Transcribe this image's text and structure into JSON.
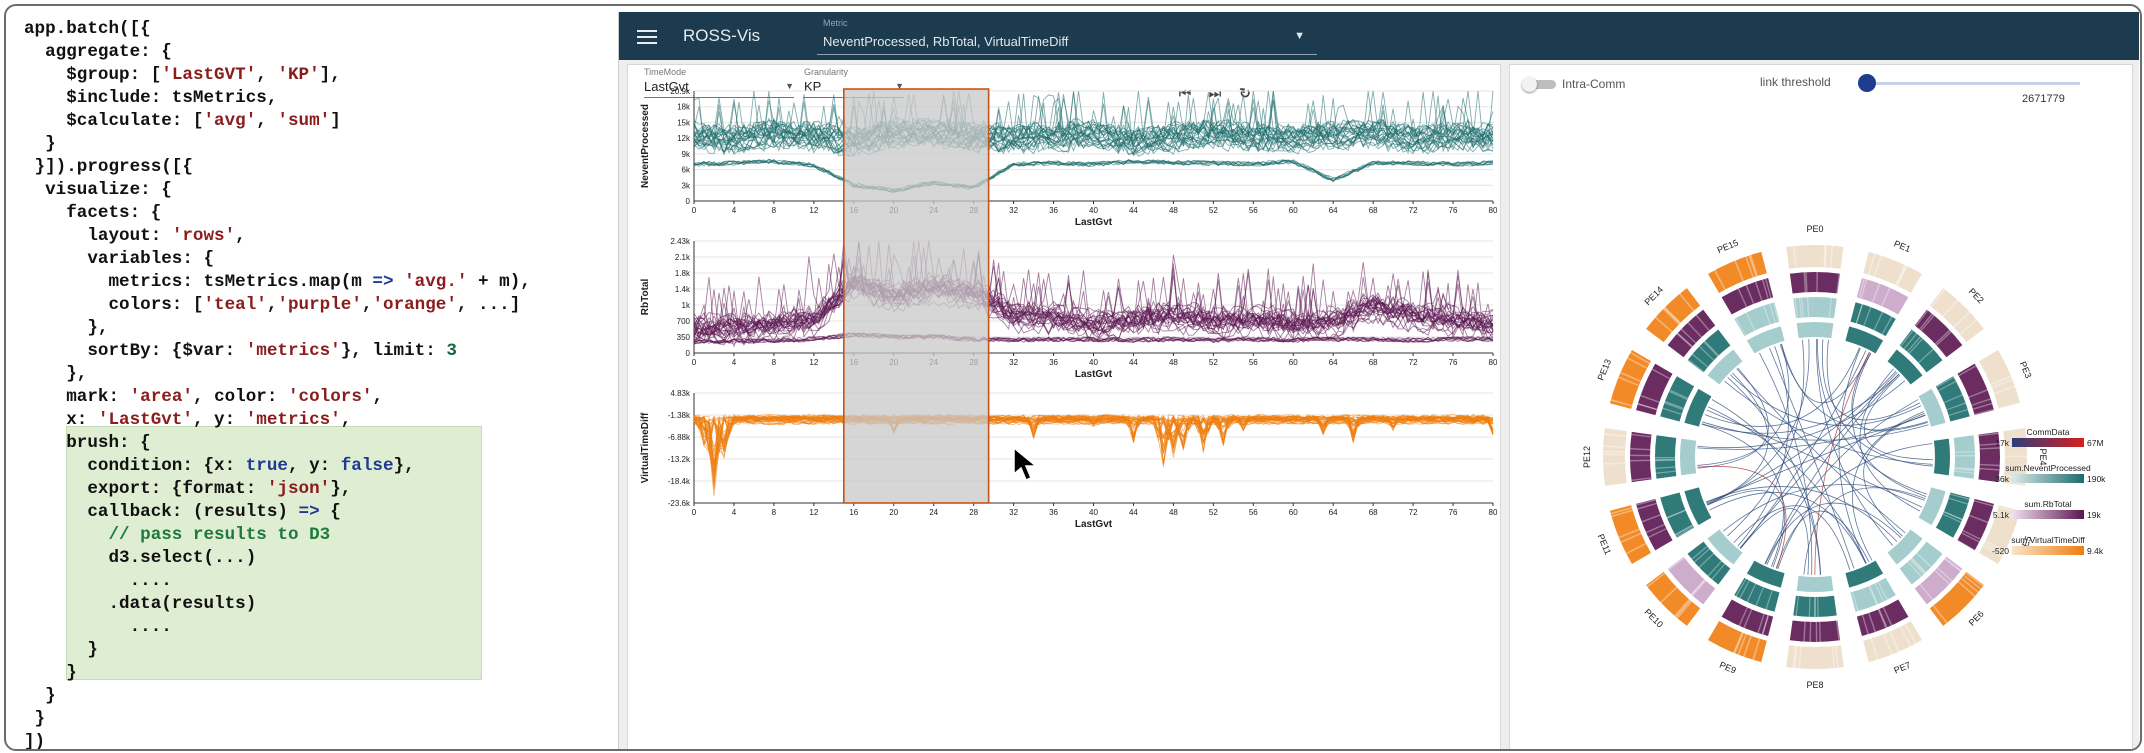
{
  "code": {
    "lines": [
      [
        [
          "app.batch([{",
          ""
        ]
      ],
      [
        [
          "  aggregate: {",
          ""
        ]
      ],
      [
        [
          "    $group: [",
          ""
        ],
        [
          "'LastGVT'",
          "str"
        ],
        [
          ", ",
          ""
        ],
        [
          "'KP'",
          "str"
        ],
        [
          "],",
          ""
        ]
      ],
      [
        [
          "    $include: tsMetrics,",
          ""
        ]
      ],
      [
        [
          "    $calculate: [",
          ""
        ],
        [
          "'avg'",
          "str"
        ],
        [
          ", ",
          ""
        ],
        [
          "'sum'",
          "str"
        ],
        [
          "]",
          ""
        ]
      ],
      [
        [
          "  }",
          ""
        ]
      ],
      [
        [
          " }]).progress([{",
          ""
        ]
      ],
      [
        [
          "  visualize: {",
          ""
        ]
      ],
      [
        [
          "    facets: {",
          ""
        ]
      ],
      [
        [
          "      layout: ",
          ""
        ],
        [
          "'rows'",
          "str"
        ],
        [
          ",",
          ""
        ]
      ],
      [
        [
          "      variables: {",
          ""
        ]
      ],
      [
        [
          "        metrics: tsMetrics.map(m ",
          ""
        ],
        [
          "=>",
          "kw"
        ],
        [
          " ",
          ""
        ],
        [
          "'avg.'",
          "str"
        ],
        [
          " + m),",
          ""
        ]
      ],
      [
        [
          "        colors: [",
          ""
        ],
        [
          "'teal'",
          "str"
        ],
        [
          ",",
          ""
        ],
        [
          "'purple'",
          "str"
        ],
        [
          ",",
          ""
        ],
        [
          "'orange'",
          "str"
        ],
        [
          ", ...]",
          ""
        ]
      ],
      [
        [
          "      },",
          ""
        ]
      ],
      [
        [
          "      sortBy: {$var: ",
          ""
        ],
        [
          "'metrics'",
          "str"
        ],
        [
          "}, limit: ",
          ""
        ],
        [
          "3",
          "num"
        ]
      ],
      [
        [
          "    },",
          ""
        ]
      ],
      [
        [
          "    mark: ",
          ""
        ],
        [
          "'area'",
          "str"
        ],
        [
          ", color: ",
          ""
        ],
        [
          "'colors'",
          "str"
        ],
        [
          ",",
          ""
        ]
      ],
      [
        [
          "    x: ",
          ""
        ],
        [
          "'LastGvt'",
          "str"
        ],
        [
          ", y: ",
          ""
        ],
        [
          "'metrics'",
          "str"
        ],
        [
          ",",
          ""
        ]
      ],
      [
        [
          "    brush: {",
          ""
        ]
      ],
      [
        [
          "      condition: {x: ",
          ""
        ],
        [
          "true",
          "kw"
        ],
        [
          ", y: ",
          ""
        ],
        [
          "false",
          "kw"
        ],
        [
          "},",
          ""
        ]
      ],
      [
        [
          "      export: {format: ",
          ""
        ],
        [
          "'json'",
          "str"
        ],
        [
          "},",
          ""
        ]
      ],
      [
        [
          "      callback: (results) ",
          ""
        ],
        [
          "=>",
          "kw"
        ],
        [
          " {",
          ""
        ]
      ],
      [
        [
          "        // pass results to D3",
          "cm"
        ]
      ],
      [
        [
          "        d3.select(...)",
          ""
        ]
      ],
      [
        [
          "          ....",
          ""
        ]
      ],
      [
        [
          "        .data(results)",
          ""
        ]
      ],
      [
        [
          "          ....",
          ""
        ]
      ],
      [
        [
          "      }",
          ""
        ]
      ],
      [
        [
          "    }",
          ""
        ]
      ],
      [
        [
          "  }",
          ""
        ]
      ],
      [
        [
          " }",
          ""
        ]
      ],
      [
        [
          "])",
          ""
        ]
      ]
    ]
  },
  "app": {
    "title": "ROSS-Vis",
    "metric_select_label": "Metric",
    "metric_select_value": "NeventProcessed, RbTotal, VirtualTimeDiff",
    "timemode_label": "TimeMode",
    "timemode_value": "LastGvt",
    "granularity_label": "Granularity",
    "granularity_value": "KP",
    "btn_first": "⏮",
    "btn_next": "⏭",
    "btn_refresh": "↻",
    "intra_comm_label": "Intra-Comm",
    "link_threshold_label": "link threshold",
    "link_threshold_value": "2671779"
  },
  "colors": {
    "teal": "#1b6b6b",
    "purple": "#5b1650",
    "orange": "#ef7d0f",
    "brush": "#c8c8c8",
    "brush_border": "#c8531a",
    "link": "#2b4a7a"
  },
  "chart_data": [
    {
      "type": "line",
      "ylabel": "NeventProcessed",
      "xlabel": "LastGvt",
      "xlim": [
        0,
        80
      ],
      "ylim": [
        0,
        20900
      ],
      "y_ticks": [
        "0",
        "3k",
        "6k",
        "9k",
        "12k",
        "15k",
        "18k",
        "20.9k"
      ],
      "x_ticks": [
        "0",
        "4",
        "8",
        "12",
        "16",
        "20",
        "24",
        "28",
        "32",
        "36",
        "40",
        "44",
        "48",
        "52",
        "56",
        "60",
        "64",
        "68",
        "72",
        "76",
        "80"
      ],
      "color": "teal",
      "brush_x": [
        15,
        29.5
      ],
      "band_center": [
        12000,
        11500,
        12500,
        12000,
        11000,
        12500,
        12800,
        12000,
        11500,
        12000,
        12500,
        11000,
        11800,
        12500,
        12000,
        11500,
        12200,
        12800,
        11500,
        12000,
        12000
      ],
      "band_low": [
        7000,
        7200,
        7500,
        6800,
        3000,
        2000,
        3500,
        2500,
        7000,
        7200,
        7000,
        7500,
        7300,
        7200,
        7000,
        7500,
        4000,
        7300,
        7200,
        7000,
        7200
      ]
    },
    {
      "type": "line",
      "ylabel": "RbTotal",
      "xlabel": "LastGvt",
      "xlim": [
        0,
        80
      ],
      "ylim": [
        0,
        2430
      ],
      "y_ticks": [
        "0",
        "350",
        "700",
        "1k",
        "1.4k",
        "1.8k",
        "2.1k",
        "2.43k"
      ],
      "x_ticks": [
        "0",
        "4",
        "8",
        "12",
        "16",
        "20",
        "24",
        "28",
        "32",
        "36",
        "40",
        "44",
        "48",
        "52",
        "56",
        "60",
        "64",
        "68",
        "72",
        "76",
        "80"
      ],
      "color": "purple",
      "brush_x": [
        15,
        29.5
      ],
      "band_center": [
        500,
        520,
        600,
        700,
        1500,
        1200,
        1400,
        1300,
        800,
        750,
        600,
        700,
        800,
        650,
        700,
        600,
        650,
        1000,
        800,
        700,
        600
      ],
      "band_low": [
        250,
        260,
        280,
        300,
        400,
        350,
        350,
        300,
        280,
        300,
        300,
        280,
        300,
        280,
        300,
        280,
        300,
        300,
        280,
        300,
        300
      ]
    },
    {
      "type": "line",
      "ylabel": "VirtualTimeDiff",
      "xlabel": "LastGvt",
      "xlim": [
        0,
        80
      ],
      "ylim": [
        -23600,
        4830
      ],
      "y_ticks": [
        "-23.6k",
        "-18.4k",
        "-13.2k",
        "-6.88k",
        "-1.38k",
        "4.83k"
      ],
      "x_ticks": [
        "0",
        "4",
        "8",
        "12",
        "16",
        "20",
        "24",
        "28",
        "32",
        "36",
        "40",
        "44",
        "48",
        "52",
        "56",
        "60",
        "64",
        "68",
        "72",
        "76",
        "80"
      ],
      "color": "orange",
      "brush_x": [
        15,
        29.5
      ],
      "dips": [
        [
          1,
          -9000
        ],
        [
          2,
          -22000
        ],
        [
          3,
          -13000
        ],
        [
          20,
          -6000
        ],
        [
          28,
          -3000
        ],
        [
          34,
          -7000
        ],
        [
          40,
          -4000
        ],
        [
          44,
          -8000
        ],
        [
          47,
          -15000
        ],
        [
          48,
          -12000
        ],
        [
          49,
          -10000
        ],
        [
          51,
          -11000
        ],
        [
          53,
          -9000
        ],
        [
          55,
          -5000
        ],
        [
          63,
          -6000
        ],
        [
          66,
          -8000
        ],
        [
          70,
          -5000
        ],
        [
          78,
          -3000
        ],
        [
          80,
          -6000
        ]
      ]
    }
  ],
  "chord": {
    "pe_labels": [
      "PE0",
      "PE1",
      "PE2",
      "PE3",
      "PE4",
      "PE5",
      "PE6",
      "PE7",
      "PE8",
      "PE9",
      "PE10",
      "PE11",
      "PE12",
      "PE13",
      "PE14",
      "PE15"
    ],
    "legend": [
      {
        "title": "CommData",
        "min": "17k",
        "max": "67M"
      },
      {
        "title": "sum.NeventProcessed",
        "min": "36k",
        "max": "190k"
      },
      {
        "title": "sum.RbTotal",
        "min": "5.1k",
        "max": "19k"
      },
      {
        "title": "sum.VirtualTimeDiff",
        "min": "-520",
        "max": "9.4k"
      }
    ]
  }
}
